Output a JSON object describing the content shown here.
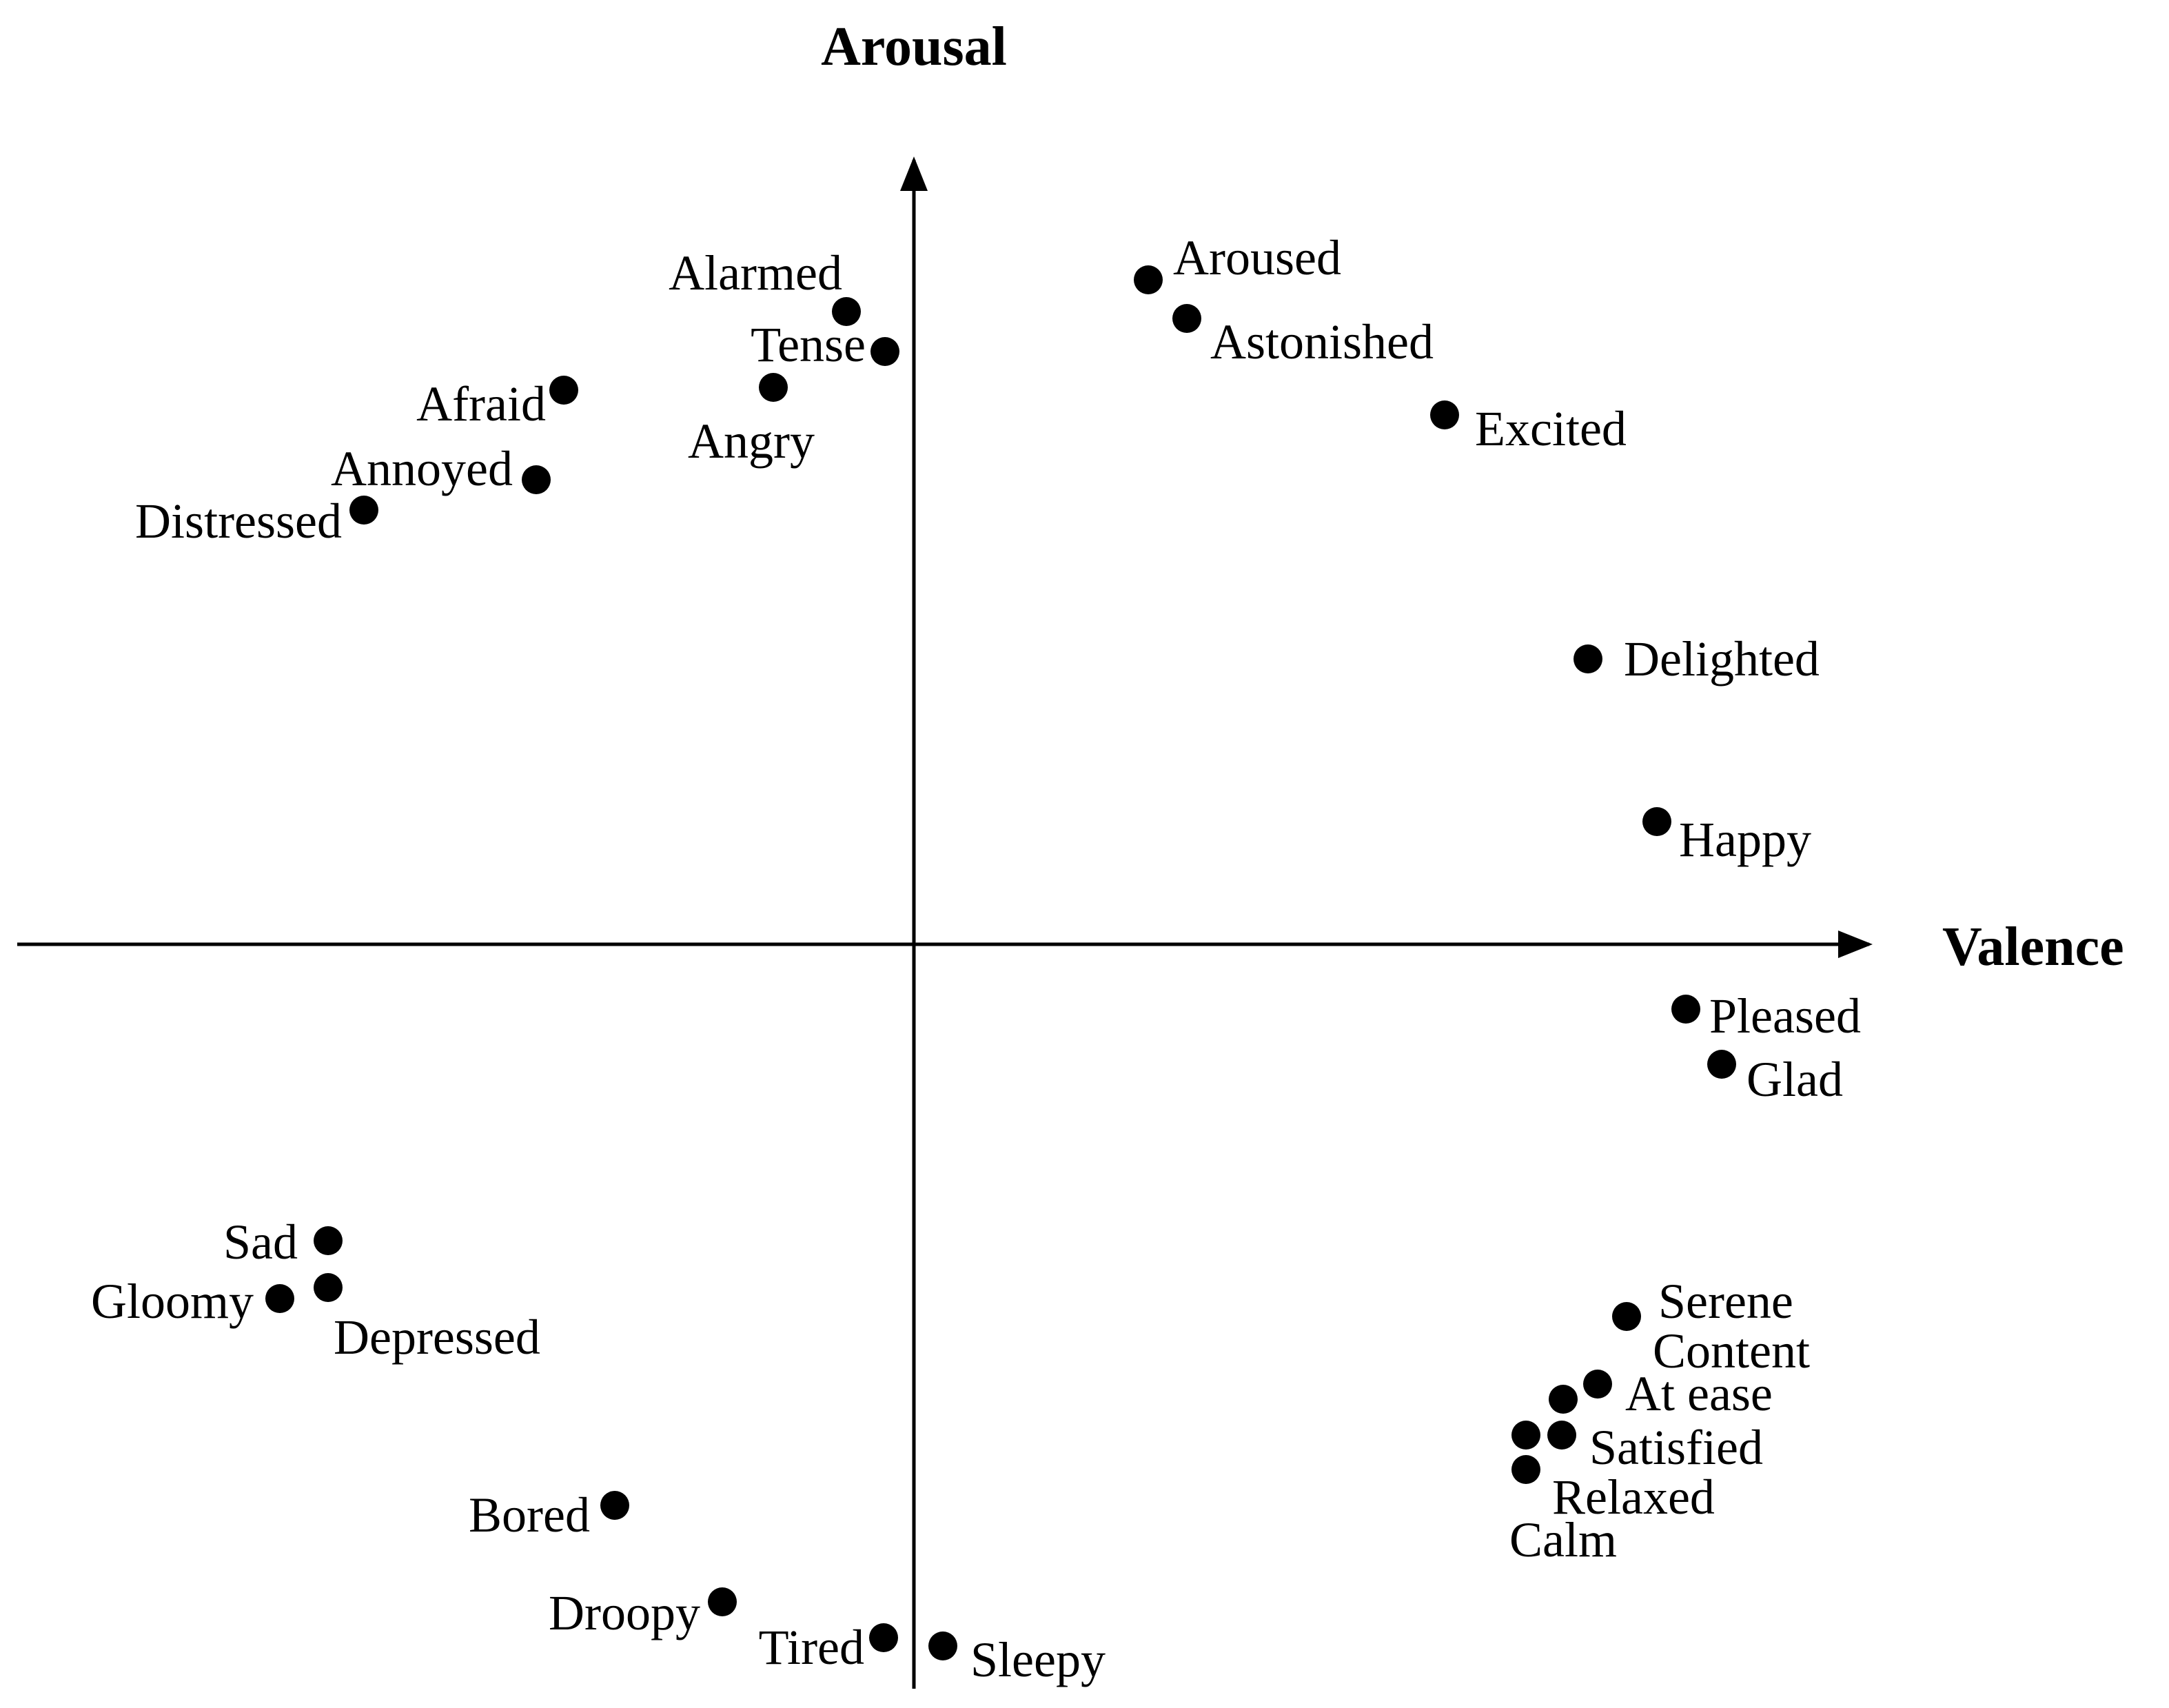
{
  "axes": {
    "x_title": "Valence",
    "y_title": "Arousal",
    "color": "#000000"
  },
  "points": [
    {
      "label": "Alarmed"
    },
    {
      "label": "Tense"
    },
    {
      "label": "Angry"
    },
    {
      "label": "Afraid"
    },
    {
      "label": "Annoyed"
    },
    {
      "label": "Distressed"
    },
    {
      "label": "Aroused"
    },
    {
      "label": "Astonished"
    },
    {
      "label": "Excited"
    },
    {
      "label": "Delighted"
    },
    {
      "label": "Happy"
    },
    {
      "label": "Pleased"
    },
    {
      "label": "Glad"
    },
    {
      "label": "Serene"
    },
    {
      "label": "Content"
    },
    {
      "label": "At ease"
    },
    {
      "label": "Satisfied"
    },
    {
      "label": "Relaxed"
    },
    {
      "label": "Calm"
    },
    {
      "label": "Sad"
    },
    {
      "label": "Gloomy"
    },
    {
      "label": "Depressed"
    },
    {
      "label": "Bored"
    },
    {
      "label": "Droopy"
    },
    {
      "label": "Tired"
    },
    {
      "label": "Sleepy"
    }
  ]
}
